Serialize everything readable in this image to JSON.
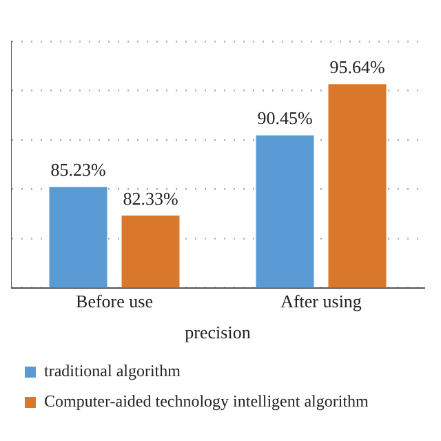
{
  "chart_data": {
    "type": "bar",
    "xlabel": "precision",
    "categories": [
      "Before use",
      "After using"
    ],
    "series": [
      {
        "name": "traditional algorithm",
        "color": "#5b9bd5",
        "values": [
          85.23,
          90.45
        ],
        "value_labels": [
          "85.23%",
          "90.45%"
        ]
      },
      {
        "name": "Computer-aided technology intelligent algorithm",
        "color": "#d9772b",
        "values": [
          82.33,
          95.64
        ],
        "value_labels": [
          "82.33%",
          "95.64%"
        ]
      }
    ],
    "ylim": [
      75,
      100
    ],
    "yticks": [
      {
        "value": 75,
        "label": null
      },
      {
        "value": 80,
        "label": null
      },
      {
        "value": 85,
        "label": null
      },
      {
        "value": 90,
        "label": null
      },
      {
        "value": 95,
        "label": null
      },
      {
        "value": 100,
        "label": null
      }
    ],
    "grid": "y",
    "legend": "bottom",
    "tick_labels": "x"
  }
}
